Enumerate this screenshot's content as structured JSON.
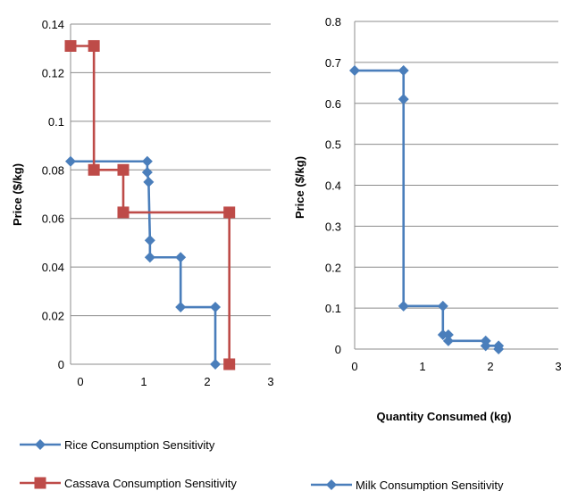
{
  "chart_data": [
    {
      "type": "line",
      "step": true,
      "title": "",
      "xlabel": "",
      "ylabel": "Price ($/kg)",
      "xlim": [
        0,
        3
      ],
      "ylim": [
        0,
        0.14
      ],
      "x_ticks": [
        "0",
        "1",
        "2",
        "3"
      ],
      "y_ticks": [
        "0",
        "0.02",
        "0.04",
        "0.06",
        "0.08",
        "0.1",
        "0.12",
        "0.14"
      ],
      "grid": "horizontal",
      "legend": "bottom",
      "series": [
        {
          "name": "Rice Consumption Sensitivity",
          "color": "#4a7ebb",
          "marker": "diamond",
          "points": [
            [
              0,
              0.0835
            ],
            [
              1.15,
              0.0835
            ],
            [
              1.15,
              0.079
            ],
            [
              1.17,
              0.075
            ],
            [
              1.19,
              0.051
            ],
            [
              1.19,
              0.044
            ],
            [
              1.65,
              0.044
            ],
            [
              1.65,
              0.0235
            ],
            [
              2.17,
              0.0235
            ],
            [
              2.17,
              0
            ]
          ]
        },
        {
          "name": "Cassava Consumption Sensitivity",
          "color": "#be4b48",
          "marker": "square",
          "points": [
            [
              0,
              0.131
            ],
            [
              0.35,
              0.131
            ],
            [
              0.35,
              0.08
            ],
            [
              0.79,
              0.08
            ],
            [
              0.79,
              0.0625
            ],
            [
              2.38,
              0.0625
            ],
            [
              2.38,
              0
            ]
          ]
        }
      ]
    },
    {
      "type": "line",
      "step": true,
      "title": "",
      "xlabel": "Quantity Consumed (kg)",
      "ylabel": "Price ($/kg)",
      "xlim": [
        0,
        3
      ],
      "ylim": [
        0,
        0.8
      ],
      "x_ticks": [
        "0",
        "1",
        "2",
        "3"
      ],
      "y_ticks": [
        "0",
        "0.1",
        "0.2",
        "0.3",
        "0.4",
        "0.5",
        "0.6",
        "0.7",
        "0.8"
      ],
      "grid": "horizontal",
      "legend": "bottom",
      "series": [
        {
          "name": "Milk Consumption Sensitivity",
          "color": "#4a7ebb",
          "marker": "diamond",
          "points": [
            [
              0,
              0.68
            ],
            [
              0.72,
              0.68
            ],
            [
              0.72,
              0.61
            ],
            [
              0.72,
              0.105
            ],
            [
              1.3,
              0.105
            ],
            [
              1.3,
              0.035
            ],
            [
              1.38,
              0.035
            ],
            [
              1.38,
              0.02
            ],
            [
              1.93,
              0.02
            ],
            [
              1.93,
              0.008
            ],
            [
              2.12,
              0.008
            ],
            [
              2.12,
              0
            ]
          ]
        }
      ]
    }
  ]
}
